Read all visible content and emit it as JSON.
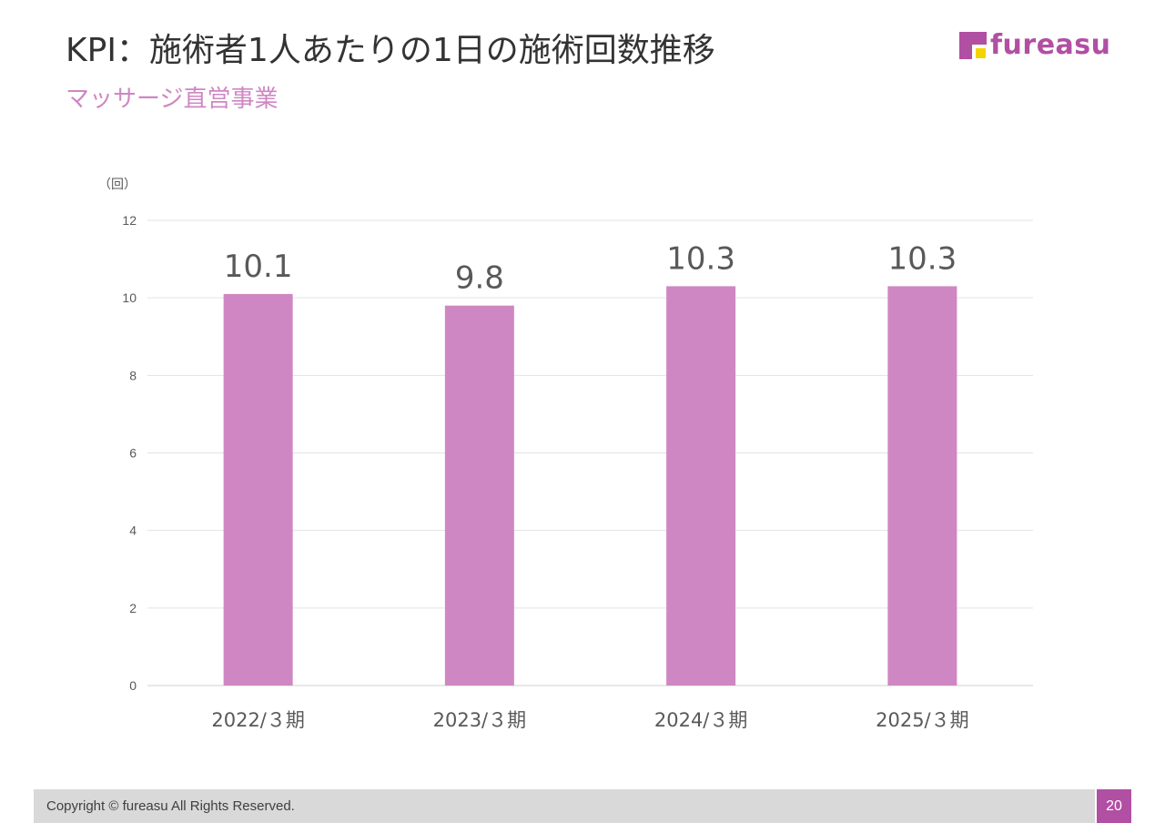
{
  "header": {
    "title": "KPI：施術者1人あたりの1日の施術回数推移",
    "subtitle": "マッサージ直営事業",
    "logo_text": "fureasu"
  },
  "colors": {
    "bar": "#cf87c3",
    "brand": "#b14fa3",
    "logo_accent": "#f5d300",
    "subtitle": "#cf87c3"
  },
  "chart_data": {
    "type": "bar",
    "categories": [
      "2022/３期",
      "2023/３期",
      "2024/３期",
      "2025/３期"
    ],
    "values": [
      10.1,
      9.8,
      10.3,
      10.3
    ],
    "value_labels": [
      "10.1",
      "9.8",
      "10.3",
      "10.3"
    ],
    "ylabel": "（回）",
    "ylim": [
      0,
      12
    ],
    "yticks": [
      0,
      2,
      4,
      6,
      8,
      10,
      12
    ],
    "grid": true,
    "legend": "none"
  },
  "footer": {
    "copyright": "Copyright © fureasu All Rights Reserved.",
    "page_number": "20"
  }
}
